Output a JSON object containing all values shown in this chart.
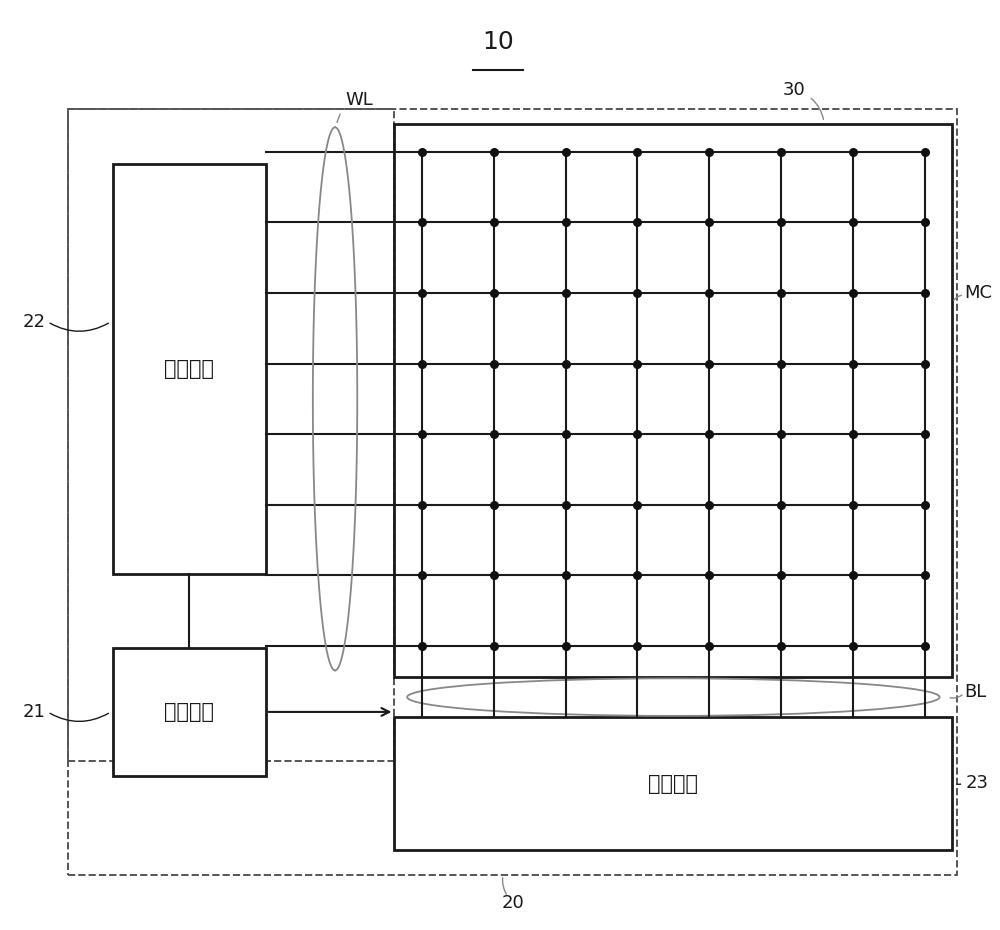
{
  "bg_color": "#ffffff",
  "title": "10",
  "text_row_driver": "行驱动器",
  "text_ctrl_logic": "控制逻辑",
  "text_col_driver": "列驱动器",
  "label_22": "22",
  "label_21": "21",
  "label_23": "23",
  "label_30": "30",
  "label_20": "20",
  "label_WL": "WL",
  "label_BL": "BL",
  "label_MC": "MC",
  "line_color": "#1a1a1a",
  "dashed_color": "#555555",
  "dot_color": "#111111",
  "grid_rows": 8,
  "grid_cols": 8,
  "wl_ellipse_color": "#888888",
  "bl_ellipse_color": "#888888"
}
